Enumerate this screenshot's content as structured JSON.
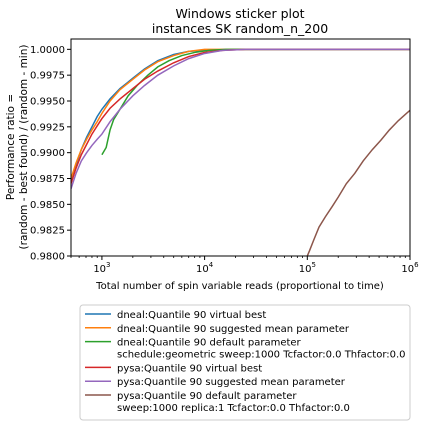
{
  "chart_data": {
    "type": "line",
    "title": "Windows sticker plot",
    "subtitle": "instances SK random_n_200",
    "xlabel": "Total number of spin variable reads (proportional to time)",
    "ylabel_line1": "Performance ratio =",
    "ylabel_line2": "(random - best found) / (random - min)",
    "xscale": "log",
    "xlim": [
      500,
      1000000
    ],
    "ylim": [
      0.98,
      1.001
    ],
    "x_ticks": [
      {
        "value": 1000,
        "base": "10",
        "exp": "3"
      },
      {
        "value": 10000,
        "base": "10",
        "exp": "4"
      },
      {
        "value": 100000,
        "base": "10",
        "exp": "5"
      },
      {
        "value": 1000000,
        "base": "10",
        "exp": "6"
      }
    ],
    "y_ticks": [
      {
        "value": 0.98,
        "label": "0.9800"
      },
      {
        "value": 0.9825,
        "label": "0.9825"
      },
      {
        "value": 0.985,
        "label": "0.9850"
      },
      {
        "value": 0.9875,
        "label": "0.9875"
      },
      {
        "value": 0.99,
        "label": "0.9900"
      },
      {
        "value": 0.9925,
        "label": "0.9925"
      },
      {
        "value": 0.995,
        "label": "0.9950"
      },
      {
        "value": 0.9975,
        "label": "0.9975"
      },
      {
        "value": 1.0,
        "label": "1.0000"
      }
    ],
    "grid": false,
    "legend_position": "below",
    "series": [
      {
        "name": "dneal:Quantile 90 virtual best",
        "color": "#1f77b4",
        "points": [
          [
            500,
            0.9872
          ],
          [
            560,
            0.9888
          ],
          [
            630,
            0.9903
          ],
          [
            710,
            0.9915
          ],
          [
            800,
            0.9925
          ],
          [
            900,
            0.9935
          ],
          [
            1000,
            0.9942
          ],
          [
            1200,
            0.9952
          ],
          [
            1500,
            0.9962
          ],
          [
            2000,
            0.9972
          ],
          [
            2600,
            0.9981
          ],
          [
            3500,
            0.9989
          ],
          [
            5000,
            0.9995
          ],
          [
            7000,
            0.9998
          ],
          [
            10000,
            0.9999
          ],
          [
            20000,
            1.0
          ],
          [
            1000000,
            1.0
          ]
        ]
      },
      {
        "name": "dneal:Quantile 90 suggested mean parameter",
        "color": "#ff7f0e",
        "points": [
          [
            500,
            0.9875
          ],
          [
            560,
            0.989
          ],
          [
            630,
            0.9903
          ],
          [
            710,
            0.9913
          ],
          [
            800,
            0.9922
          ],
          [
            900,
            0.993
          ],
          [
            1000,
            0.9938
          ],
          [
            1200,
            0.995
          ],
          [
            1500,
            0.9961
          ],
          [
            2000,
            0.9971
          ],
          [
            2600,
            0.998
          ],
          [
            3500,
            0.9988
          ],
          [
            5000,
            0.9994
          ],
          [
            7000,
            0.9998
          ],
          [
            10000,
            1.0
          ],
          [
            1000000,
            1.0
          ]
        ]
      },
      {
        "name": "dneal:Quantile 90 default parameter",
        "name_line2": "schedule:geometric sweep:1000 Tcfactor:0.0 Thfactor:0.0",
        "color": "#2ca02c",
        "points": [
          [
            1000,
            0.9898
          ],
          [
            1100,
            0.9905
          ],
          [
            1200,
            0.9922
          ],
          [
            1300,
            0.9932
          ],
          [
            1500,
            0.9942
          ],
          [
            1800,
            0.9955
          ],
          [
            2200,
            0.9965
          ],
          [
            2800,
            0.9975
          ],
          [
            3500,
            0.9983
          ],
          [
            4500,
            0.9989
          ],
          [
            6000,
            0.9994
          ],
          [
            8000,
            0.9997
          ],
          [
            11000,
            0.9999
          ],
          [
            16000,
            1.0
          ],
          [
            1000000,
            1.0
          ]
        ]
      },
      {
        "name": "pysa:Quantile 90 virtual best",
        "color": "#d62728",
        "points": [
          [
            500,
            0.987
          ],
          [
            560,
            0.9885
          ],
          [
            630,
            0.9898
          ],
          [
            710,
            0.9908
          ],
          [
            800,
            0.9918
          ],
          [
            900,
            0.9926
          ],
          [
            1000,
            0.9933
          ],
          [
            1200,
            0.9943
          ],
          [
            1500,
            0.9952
          ],
          [
            2000,
            0.9962
          ],
          [
            2600,
            0.9971
          ],
          [
            3500,
            0.9979
          ],
          [
            5000,
            0.9987
          ],
          [
            7000,
            0.9993
          ],
          [
            10000,
            0.9997
          ],
          [
            15000,
            0.9999
          ],
          [
            25000,
            1.0
          ],
          [
            1000000,
            1.0
          ]
        ]
      },
      {
        "name": "pysa:Quantile 90 suggested mean parameter",
        "color": "#9467bd",
        "points": [
          [
            500,
            0.9865
          ],
          [
            560,
            0.988
          ],
          [
            630,
            0.9892
          ],
          [
            710,
            0.99
          ],
          [
            800,
            0.9907
          ],
          [
            900,
            0.9913
          ],
          [
            1000,
            0.9918
          ],
          [
            1200,
            0.993
          ],
          [
            1500,
            0.9942
          ],
          [
            2000,
            0.9955
          ],
          [
            2600,
            0.9965
          ],
          [
            3500,
            0.9975
          ],
          [
            5000,
            0.9984
          ],
          [
            7000,
            0.9991
          ],
          [
            10000,
            0.9996
          ],
          [
            15000,
            0.9999
          ],
          [
            25000,
            1.0
          ],
          [
            1000000,
            1.0
          ]
        ]
      },
      {
        "name": "pysa:Quantile 90 default parameter",
        "name_line2": "sweep:1000 replica:1 Tcfactor:0.0 Thfactor:0.0",
        "color": "#8c564b",
        "points": [
          [
            100000,
            0.98
          ],
          [
            105000,
            0.9805
          ],
          [
            115000,
            0.9815
          ],
          [
            130000,
            0.9828
          ],
          [
            150000,
            0.9838
          ],
          [
            175000,
            0.9848
          ],
          [
            200000,
            0.9857
          ],
          [
            240000,
            0.987
          ],
          [
            290000,
            0.988
          ],
          [
            350000,
            0.9892
          ],
          [
            430000,
            0.9903
          ],
          [
            520000,
            0.9912
          ],
          [
            630000,
            0.9922
          ],
          [
            770000,
            0.9931
          ],
          [
            900000,
            0.9937
          ],
          [
            1000000,
            0.9941
          ]
        ]
      }
    ]
  }
}
